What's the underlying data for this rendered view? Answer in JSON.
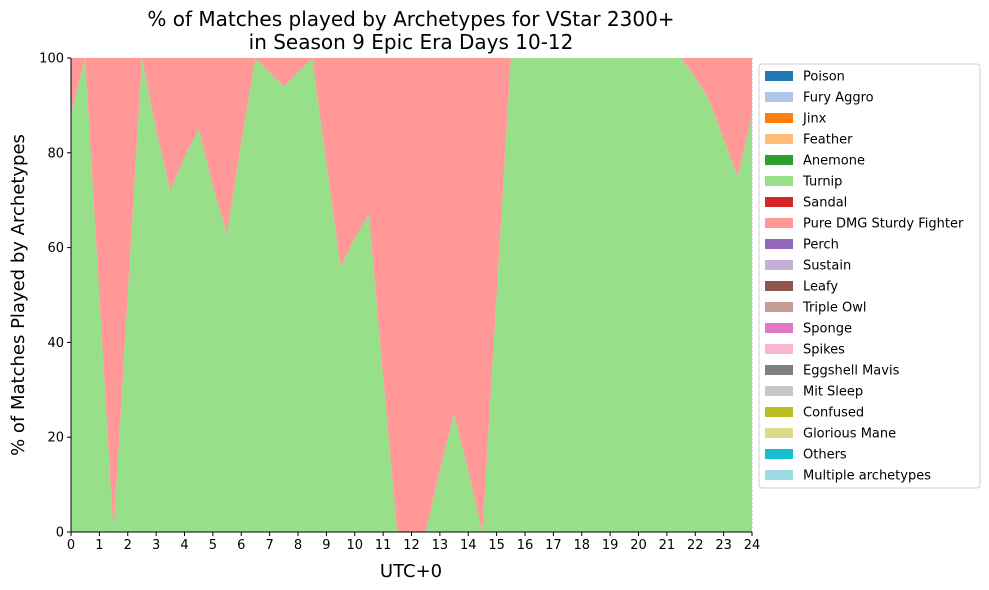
{
  "chart_data": {
    "type": "area",
    "stacked": true,
    "title_lines": [
      "% of Matches played by Archetypes for VStar 2300+",
      "in Season 9 Epic Era Days 10-12"
    ],
    "xlabel": "UTC+0",
    "ylabel": "% of Matches Played by Archetypes",
    "xlim": [
      0,
      24
    ],
    "ylim": [
      0,
      100
    ],
    "x_ticks": [
      0,
      1,
      2,
      3,
      4,
      5,
      6,
      7,
      8,
      9,
      10,
      11,
      12,
      13,
      14,
      15,
      16,
      17,
      18,
      19,
      20,
      21,
      22,
      23,
      24
    ],
    "y_ticks": [
      0,
      20,
      40,
      60,
      80,
      100
    ],
    "grid": {
      "x": true,
      "y": false
    },
    "legend_position": "right-outside",
    "x": [
      0,
      0.5,
      1,
      1.5,
      2,
      2.5,
      3,
      3.5,
      4,
      4.5,
      5,
      5.5,
      6,
      6.5,
      7,
      7.5,
      8,
      8.5,
      9,
      9.5,
      10,
      10.5,
      11,
      11.5,
      12,
      12.5,
      13,
      13.5,
      14,
      14.5,
      15,
      15.5,
      16,
      16.5,
      17,
      17.5,
      18,
      18.5,
      19,
      19.5,
      20,
      20.5,
      21,
      21.5,
      22,
      22.5,
      23,
      23.5,
      24
    ],
    "series": [
      {
        "name": "Poison",
        "color": "#1f77b4",
        "values": [
          0,
          0,
          0,
          0,
          0,
          0,
          0,
          0,
          0,
          0,
          0,
          0,
          0,
          0,
          0,
          0,
          0,
          0,
          0,
          0,
          0,
          0,
          0,
          0,
          0,
          0,
          0,
          0,
          0,
          0,
          0,
          0,
          0,
          0,
          0,
          0,
          0,
          0,
          0,
          0,
          0,
          0,
          0,
          0,
          0,
          0,
          0,
          0,
          0
        ]
      },
      {
        "name": "Fury Aggro",
        "color": "#aec7e8",
        "values": [
          0,
          0,
          0,
          0,
          0,
          0,
          0,
          0,
          0,
          0,
          0,
          0,
          0,
          0,
          0,
          0,
          0,
          0,
          0,
          0,
          0,
          0,
          0,
          0,
          0,
          0,
          0,
          0,
          0,
          0,
          0,
          0,
          0,
          0,
          0,
          0,
          0,
          0,
          0,
          0,
          0,
          0,
          0,
          0,
          0,
          0,
          0,
          0,
          0
        ]
      },
      {
        "name": "Jinx",
        "color": "#ff7f0e",
        "values": [
          0,
          0,
          0,
          0,
          0,
          0,
          0,
          0,
          0,
          0,
          0,
          0,
          0,
          0,
          0,
          0,
          0,
          0,
          0,
          0,
          0,
          0,
          0,
          0,
          0,
          0,
          0,
          0,
          0,
          0,
          0,
          0,
          0,
          0,
          0,
          0,
          0,
          0,
          0,
          0,
          0,
          0,
          0,
          0,
          0,
          0,
          0,
          0,
          0
        ]
      },
      {
        "name": "Feather",
        "color": "#ffbb78",
        "values": [
          0,
          0,
          0,
          0,
          0,
          0,
          0,
          0,
          0,
          0,
          0,
          0,
          0,
          0,
          0,
          0,
          0,
          0,
          0,
          0,
          0,
          0,
          0,
          0,
          0,
          0,
          0,
          0,
          0,
          0,
          0,
          0,
          0,
          0,
          0,
          0,
          0,
          0,
          0,
          0,
          0,
          0,
          0,
          0,
          0,
          0,
          0,
          0,
          0
        ]
      },
      {
        "name": "Anemone",
        "color": "#2ca02c",
        "values": [
          0,
          0,
          0,
          0,
          0,
          0,
          0,
          0,
          0,
          0,
          0,
          0,
          0,
          0,
          0,
          0,
          0,
          0,
          0,
          0,
          0,
          0,
          0,
          0,
          0,
          0,
          0,
          0,
          0,
          0,
          0,
          0,
          0,
          0,
          0,
          0,
          0,
          0,
          0,
          0,
          0,
          0,
          0,
          0,
          0,
          0,
          0,
          0,
          0
        ]
      },
      {
        "name": "Turnip",
        "color": "#98df8a",
        "values": [
          88,
          100,
          50,
          0,
          50,
          100,
          85,
          72,
          79,
          85,
          73,
          63,
          82,
          100,
          97,
          94,
          97,
          100,
          78,
          56,
          62,
          67,
          33,
          0,
          0,
          0,
          13,
          25,
          13,
          0,
          50,
          100,
          100,
          100,
          100,
          100,
          100,
          100,
          100,
          100,
          100,
          100,
          100,
          100,
          96,
          91,
          83,
          75,
          88
        ]
      },
      {
        "name": "Sandal",
        "color": "#d62728",
        "values": [
          0,
          0,
          0,
          0,
          0,
          0,
          0,
          0,
          0,
          0,
          0,
          0,
          0,
          0,
          0,
          0,
          0,
          0,
          0,
          0,
          0,
          0,
          0,
          0,
          0,
          0,
          0,
          0,
          0,
          0,
          0,
          0,
          0,
          0,
          0,
          0,
          0,
          0,
          0,
          0,
          0,
          0,
          0,
          0,
          0,
          0,
          0,
          0,
          0
        ]
      },
      {
        "name": "Pure DMG Sturdy Fighter",
        "color": "#ff9896",
        "values": [
          12,
          0,
          50,
          100,
          50,
          0,
          15,
          28,
          21,
          15,
          27,
          37,
          18,
          0,
          3,
          6,
          3,
          0,
          22,
          44,
          38,
          33,
          67,
          100,
          100,
          100,
          87,
          75,
          87,
          100,
          50,
          0,
          0,
          0,
          0,
          0,
          0,
          0,
          0,
          0,
          0,
          0,
          0,
          0,
          4,
          9,
          17,
          25,
          12
        ]
      },
      {
        "name": "Perch",
        "color": "#9467bd",
        "values": [
          0,
          0,
          0,
          0,
          0,
          0,
          0,
          0,
          0,
          0,
          0,
          0,
          0,
          0,
          0,
          0,
          0,
          0,
          0,
          0,
          0,
          0,
          0,
          0,
          0,
          0,
          0,
          0,
          0,
          0,
          0,
          0,
          0,
          0,
          0,
          0,
          0,
          0,
          0,
          0,
          0,
          0,
          0,
          0,
          0,
          0,
          0,
          0,
          0
        ]
      },
      {
        "name": "Sustain",
        "color": "#c5b0d5",
        "values": [
          0,
          0,
          0,
          0,
          0,
          0,
          0,
          0,
          0,
          0,
          0,
          0,
          0,
          0,
          0,
          0,
          0,
          0,
          0,
          0,
          0,
          0,
          0,
          0,
          0,
          0,
          0,
          0,
          0,
          0,
          0,
          0,
          0,
          0,
          0,
          0,
          0,
          0,
          0,
          0,
          0,
          0,
          0,
          0,
          0,
          0,
          0,
          0,
          0
        ]
      },
      {
        "name": "Leafy",
        "color": "#8c564b",
        "values": [
          0,
          0,
          0,
          0,
          0,
          0,
          0,
          0,
          0,
          0,
          0,
          0,
          0,
          0,
          0,
          0,
          0,
          0,
          0,
          0,
          0,
          0,
          0,
          0,
          0,
          0,
          0,
          0,
          0,
          0,
          0,
          0,
          0,
          0,
          0,
          0,
          0,
          0,
          0,
          0,
          0,
          0,
          0,
          0,
          0,
          0,
          0,
          0,
          0
        ]
      },
      {
        "name": "Triple Owl",
        "color": "#c49c94",
        "values": [
          0,
          0,
          0,
          0,
          0,
          0,
          0,
          0,
          0,
          0,
          0,
          0,
          0,
          0,
          0,
          0,
          0,
          0,
          0,
          0,
          0,
          0,
          0,
          0,
          0,
          0,
          0,
          0,
          0,
          0,
          0,
          0,
          0,
          0,
          0,
          0,
          0,
          0,
          0,
          0,
          0,
          0,
          0,
          0,
          0,
          0,
          0,
          0,
          0
        ]
      },
      {
        "name": "Sponge",
        "color": "#e377c2",
        "values": [
          0,
          0,
          0,
          0,
          0,
          0,
          0,
          0,
          0,
          0,
          0,
          0,
          0,
          0,
          0,
          0,
          0,
          0,
          0,
          0,
          0,
          0,
          0,
          0,
          0,
          0,
          0,
          0,
          0,
          0,
          0,
          0,
          0,
          0,
          0,
          0,
          0,
          0,
          0,
          0,
          0,
          0,
          0,
          0,
          0,
          0,
          0,
          0,
          0
        ]
      },
      {
        "name": "Spikes",
        "color": "#f7b6d2",
        "values": [
          0,
          0,
          0,
          0,
          0,
          0,
          0,
          0,
          0,
          0,
          0,
          0,
          0,
          0,
          0,
          0,
          0,
          0,
          0,
          0,
          0,
          0,
          0,
          0,
          0,
          0,
          0,
          0,
          0,
          0,
          0,
          0,
          0,
          0,
          0,
          0,
          0,
          0,
          0,
          0,
          0,
          0,
          0,
          0,
          0,
          0,
          0,
          0,
          0
        ]
      },
      {
        "name": "Eggshell Mavis",
        "color": "#7f7f7f",
        "values": [
          0,
          0,
          0,
          0,
          0,
          0,
          0,
          0,
          0,
          0,
          0,
          0,
          0,
          0,
          0,
          0,
          0,
          0,
          0,
          0,
          0,
          0,
          0,
          0,
          0,
          0,
          0,
          0,
          0,
          0,
          0,
          0,
          0,
          0,
          0,
          0,
          0,
          0,
          0,
          0,
          0,
          0,
          0,
          0,
          0,
          0,
          0,
          0,
          0
        ]
      },
      {
        "name": "Mit Sleep",
        "color": "#c7c7c7",
        "values": [
          0,
          0,
          0,
          0,
          0,
          0,
          0,
          0,
          0,
          0,
          0,
          0,
          0,
          0,
          0,
          0,
          0,
          0,
          0,
          0,
          0,
          0,
          0,
          0,
          0,
          0,
          0,
          0,
          0,
          0,
          0,
          0,
          0,
          0,
          0,
          0,
          0,
          0,
          0,
          0,
          0,
          0,
          0,
          0,
          0,
          0,
          0,
          0,
          0
        ]
      },
      {
        "name": "Confused",
        "color": "#bcbd22",
        "values": [
          0,
          0,
          0,
          0,
          0,
          0,
          0,
          0,
          0,
          0,
          0,
          0,
          0,
          0,
          0,
          0,
          0,
          0,
          0,
          0,
          0,
          0,
          0,
          0,
          0,
          0,
          0,
          0,
          0,
          0,
          0,
          0,
          0,
          0,
          0,
          0,
          0,
          0,
          0,
          0,
          0,
          0,
          0,
          0,
          0,
          0,
          0,
          0,
          0
        ]
      },
      {
        "name": "Glorious Mane",
        "color": "#dbdb8d",
        "values": [
          0,
          0,
          0,
          0,
          0,
          0,
          0,
          0,
          0,
          0,
          0,
          0,
          0,
          0,
          0,
          0,
          0,
          0,
          0,
          0,
          0,
          0,
          0,
          0,
          0,
          0,
          0,
          0,
          0,
          0,
          0,
          0,
          0,
          0,
          0,
          0,
          0,
          0,
          0,
          0,
          0,
          0,
          0,
          0,
          0,
          0,
          0,
          0,
          0
        ]
      },
      {
        "name": "Others",
        "color": "#17becf",
        "values": [
          0,
          0,
          0,
          0,
          0,
          0,
          0,
          0,
          0,
          0,
          0,
          0,
          0,
          0,
          0,
          0,
          0,
          0,
          0,
          0,
          0,
          0,
          0,
          0,
          0,
          0,
          0,
          0,
          0,
          0,
          0,
          0,
          0,
          0,
          0,
          0,
          0,
          0,
          0,
          0,
          0,
          0,
          0,
          0,
          0,
          0,
          0,
          0,
          0
        ]
      },
      {
        "name": "Multiple archetypes",
        "color": "#9edae5",
        "values": [
          0,
          0,
          0,
          0,
          0,
          0,
          0,
          0,
          0,
          0,
          0,
          0,
          0,
          0,
          0,
          0,
          0,
          0,
          0,
          0,
          0,
          0,
          0,
          0,
          0,
          0,
          0,
          0,
          0,
          0,
          0,
          0,
          0,
          0,
          0,
          0,
          0,
          0,
          0,
          0,
          0,
          0,
          0,
          0,
          0,
          0,
          0,
          0,
          0
        ]
      }
    ]
  }
}
